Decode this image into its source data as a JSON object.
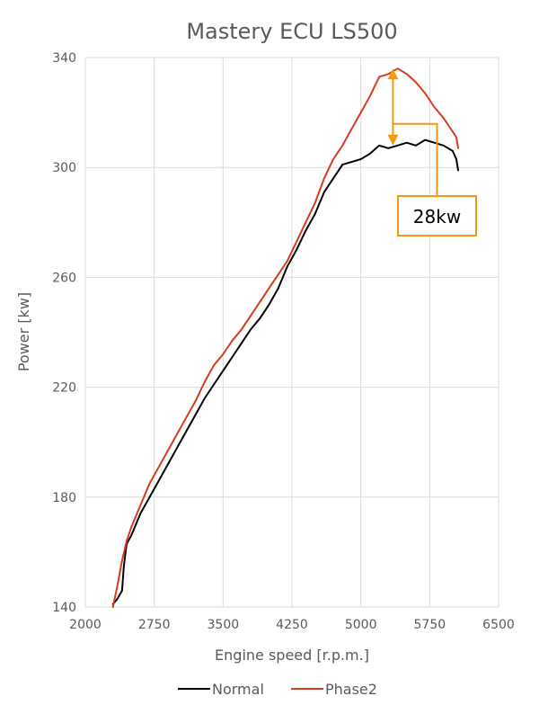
{
  "chart_data": {
    "type": "line",
    "title": "Mastery ECU LS500",
    "xlabel": "Engine speed [r.p.m.]",
    "ylabel": "Power [kw]",
    "xlim": [
      2000,
      6500
    ],
    "ylim": [
      140,
      340
    ],
    "x_ticks": [
      2000,
      2750,
      3500,
      4250,
      5000,
      5750,
      6500
    ],
    "y_ticks": [
      140,
      180,
      220,
      260,
      300,
      340
    ],
    "grid": true,
    "legend_position": "bottom",
    "series": [
      {
        "name": "Normal",
        "color": "#000000",
        "points": [
          [
            2300,
            141
          ],
          [
            2350,
            143
          ],
          [
            2400,
            146
          ],
          [
            2420,
            155
          ],
          [
            2450,
            163
          ],
          [
            2500,
            166
          ],
          [
            2550,
            170
          ],
          [
            2600,
            174
          ],
          [
            2650,
            177
          ],
          [
            2700,
            180
          ],
          [
            2800,
            186
          ],
          [
            2900,
            192
          ],
          [
            3000,
            198
          ],
          [
            3100,
            204
          ],
          [
            3200,
            210
          ],
          [
            3300,
            216
          ],
          [
            3400,
            221
          ],
          [
            3500,
            226
          ],
          [
            3600,
            231
          ],
          [
            3700,
            236
          ],
          [
            3800,
            241
          ],
          [
            3900,
            245
          ],
          [
            4000,
            250
          ],
          [
            4100,
            256
          ],
          [
            4200,
            264
          ],
          [
            4300,
            270
          ],
          [
            4400,
            277
          ],
          [
            4500,
            283
          ],
          [
            4600,
            291
          ],
          [
            4700,
            296
          ],
          [
            4800,
            301
          ],
          [
            4900,
            302
          ],
          [
            5000,
            303
          ],
          [
            5100,
            305
          ],
          [
            5200,
            308
          ],
          [
            5300,
            307
          ],
          [
            5400,
            308
          ],
          [
            5500,
            309
          ],
          [
            5600,
            308
          ],
          [
            5700,
            310
          ],
          [
            5800,
            309
          ],
          [
            5900,
            308
          ],
          [
            6000,
            306
          ],
          [
            6040,
            303
          ],
          [
            6060,
            299
          ]
        ]
      },
      {
        "name": "Phase2",
        "color": "#d83a1e",
        "points": [
          [
            2300,
            140
          ],
          [
            2350,
            148
          ],
          [
            2400,
            157
          ],
          [
            2450,
            164
          ],
          [
            2500,
            169
          ],
          [
            2550,
            173
          ],
          [
            2600,
            177
          ],
          [
            2650,
            181
          ],
          [
            2700,
            185
          ],
          [
            2800,
            191
          ],
          [
            2900,
            197
          ],
          [
            3000,
            203
          ],
          [
            3100,
            209
          ],
          [
            3200,
            215
          ],
          [
            3300,
            222
          ],
          [
            3400,
            228
          ],
          [
            3500,
            232
          ],
          [
            3600,
            237
          ],
          [
            3700,
            241
          ],
          [
            3800,
            246
          ],
          [
            3900,
            251
          ],
          [
            4000,
            256
          ],
          [
            4100,
            261
          ],
          [
            4200,
            266
          ],
          [
            4300,
            273
          ],
          [
            4400,
            280
          ],
          [
            4500,
            287
          ],
          [
            4600,
            296
          ],
          [
            4700,
            303
          ],
          [
            4800,
            308
          ],
          [
            4900,
            314
          ],
          [
            5000,
            320
          ],
          [
            5100,
            326
          ],
          [
            5200,
            333
          ],
          [
            5300,
            334
          ],
          [
            5400,
            336
          ],
          [
            5500,
            334
          ],
          [
            5600,
            331
          ],
          [
            5700,
            327
          ],
          [
            5800,
            322
          ],
          [
            5900,
            318
          ],
          [
            6000,
            313
          ],
          [
            6040,
            311
          ],
          [
            6060,
            307
          ]
        ]
      }
    ],
    "annotation": {
      "text": "28kw",
      "x": 5350,
      "y_low": 308,
      "y_high": 336,
      "color": "#f29a10"
    }
  }
}
